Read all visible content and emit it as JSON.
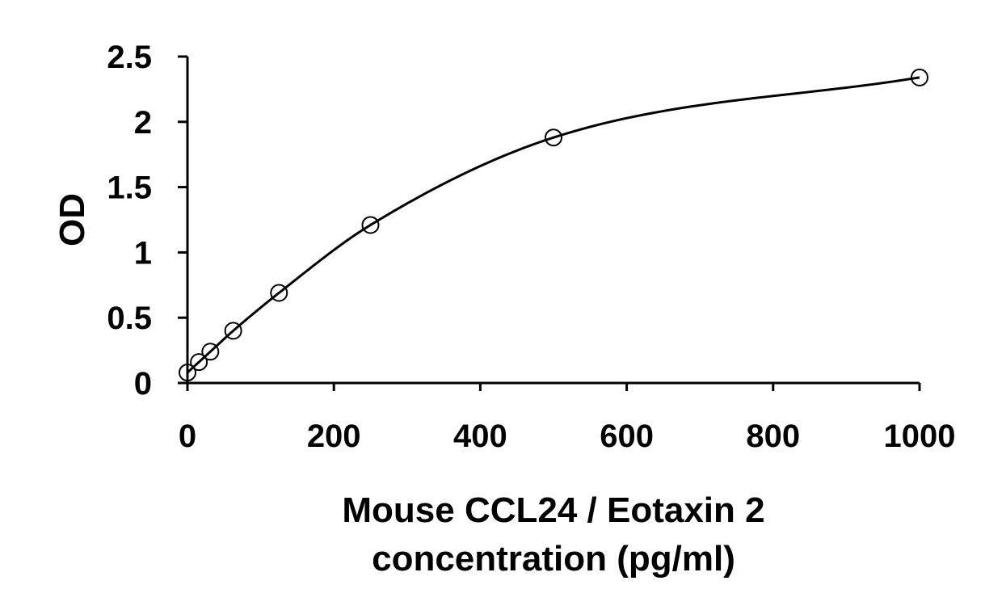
{
  "chart_data": {
    "type": "scatter",
    "xlabel_line1": "Mouse CCL24 / Eotaxin 2",
    "xlabel_line2": "concentration (pg/ml)",
    "ylabel": "OD",
    "xlim": [
      0,
      1000
    ],
    "ylim": [
      0,
      2.5
    ],
    "xticks": [
      0,
      200,
      400,
      600,
      800,
      1000
    ],
    "yticks": [
      0,
      0.5,
      1,
      1.5,
      2,
      2.5
    ],
    "ytick_labels": [
      "0",
      "0.5",
      "1",
      "1.5",
      "2",
      "2.5"
    ],
    "grid": false,
    "series": [
      {
        "x": [
          0,
          15.6,
          31.25,
          62.5,
          125,
          250,
          500,
          1000
        ],
        "y": [
          0.08,
          0.16,
          0.24,
          0.4,
          0.69,
          1.21,
          1.88,
          2.34
        ]
      }
    ],
    "fit_curve": true
  }
}
